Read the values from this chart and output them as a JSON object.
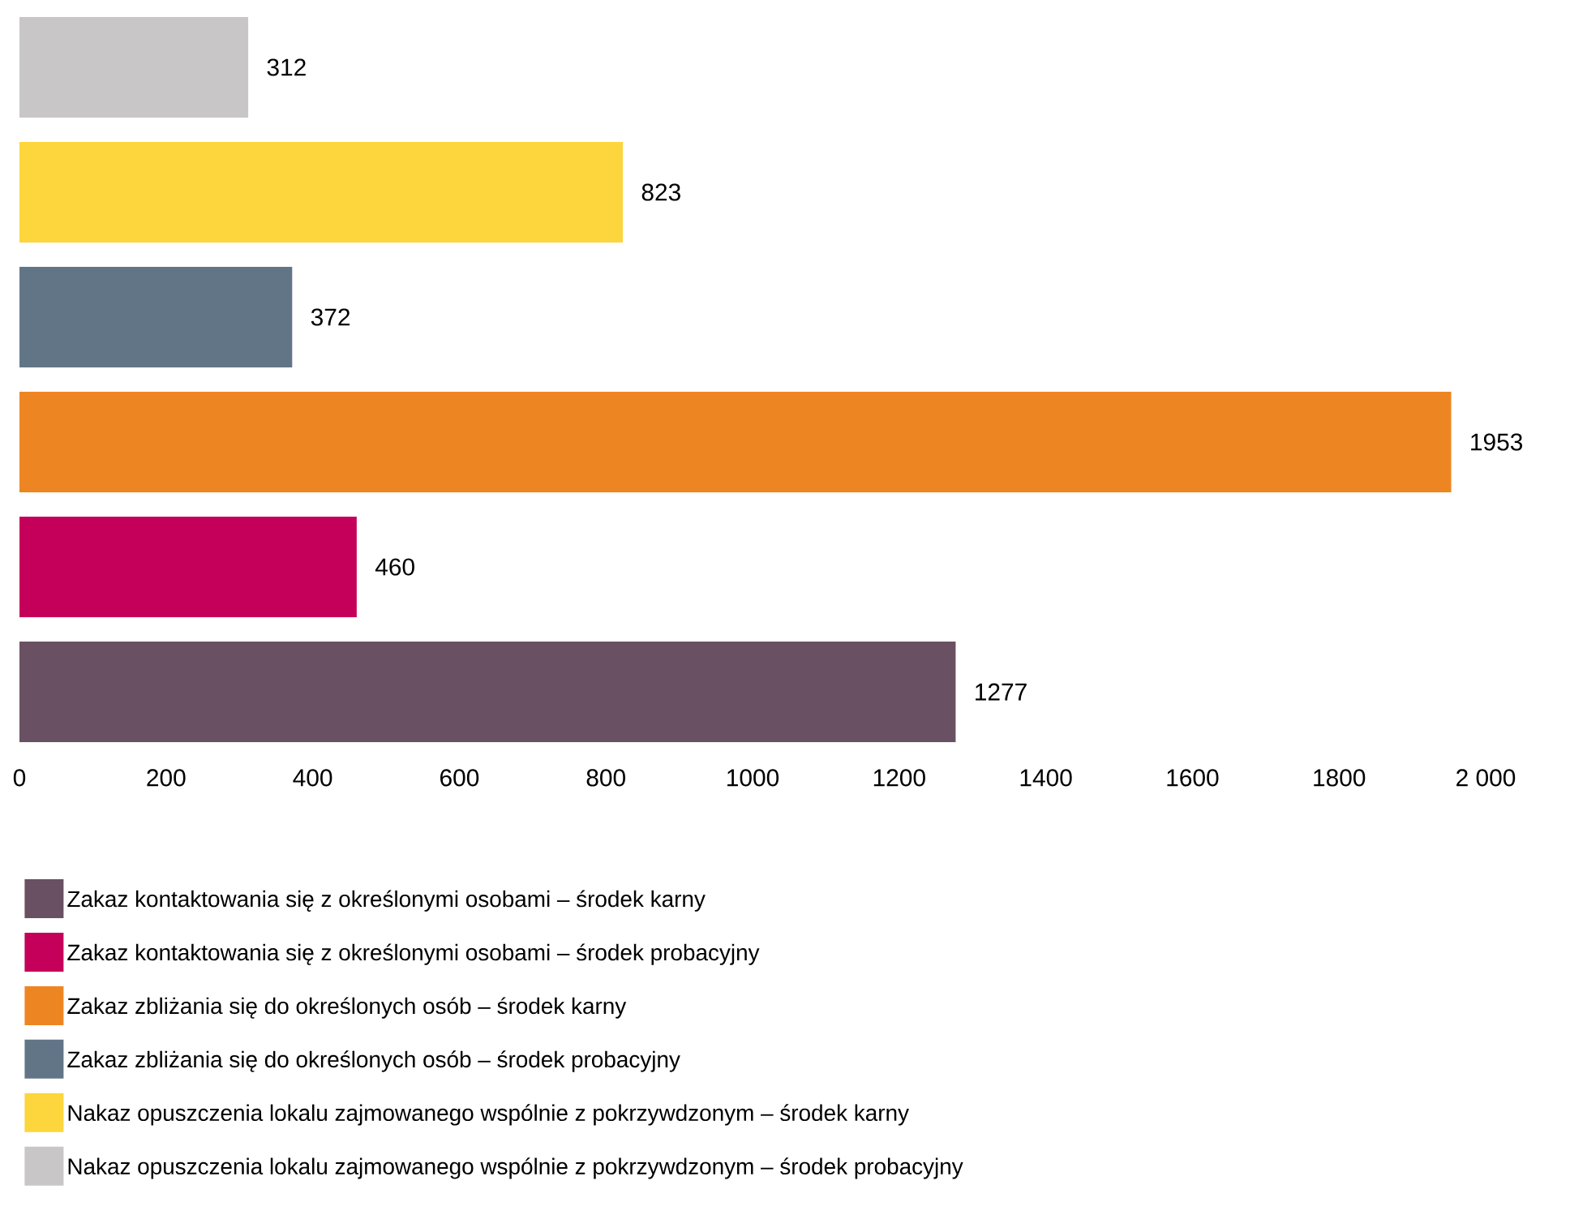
{
  "chart_data": {
    "type": "bar",
    "orientation": "horizontal",
    "categories": [
      null,
      null,
      null,
      null,
      null,
      null
    ],
    "series": [
      {
        "name": "Zakaz kontaktowania się z określonymi osobami – środek karny",
        "color": "#6a5063",
        "values": [
          null,
          null,
          null,
          null,
          null,
          1277
        ]
      },
      {
        "name": "Zakaz kontaktowania się z określonymi osobami – środek probacyjny",
        "color": "#c5005a",
        "values": [
          null,
          null,
          null,
          null,
          460,
          null
        ]
      },
      {
        "name": "Zakaz zbliżania się do określonych osób – środek karny",
        "color": "#ee8523",
        "values": [
          null,
          null,
          null,
          1953,
          null,
          null
        ]
      },
      {
        "name": "Zakaz zbliżania się do określonych osób – środek probacyjny",
        "color": "#627587",
        "values": [
          null,
          null,
          372,
          null,
          null,
          null
        ]
      },
      {
        "name": "Nakaz opuszczenia lokalu zajmowanego wspólnie z pokrzywdzonym – środek karny",
        "color": "#fdd53c",
        "values": [
          null,
          823,
          null,
          null,
          null,
          null
        ]
      },
      {
        "name": "Nakaz opuszczenia lokalu zajmowanego wspólnie z pokrzywdzonym – środek probacyjny",
        "color": "#c8c6c6",
        "values": [
          312,
          null,
          null,
          null,
          null,
          null
        ]
      }
    ],
    "xlim": [
      0,
      2000
    ],
    "xticks": [
      0,
      200,
      400,
      600,
      800,
      1000,
      1200,
      1400,
      1600,
      1800,
      {
        "value": 2000,
        "label": "2 000"
      }
    ],
    "stacked": true,
    "data_labels": true,
    "grid": false,
    "legend": "bottom"
  }
}
